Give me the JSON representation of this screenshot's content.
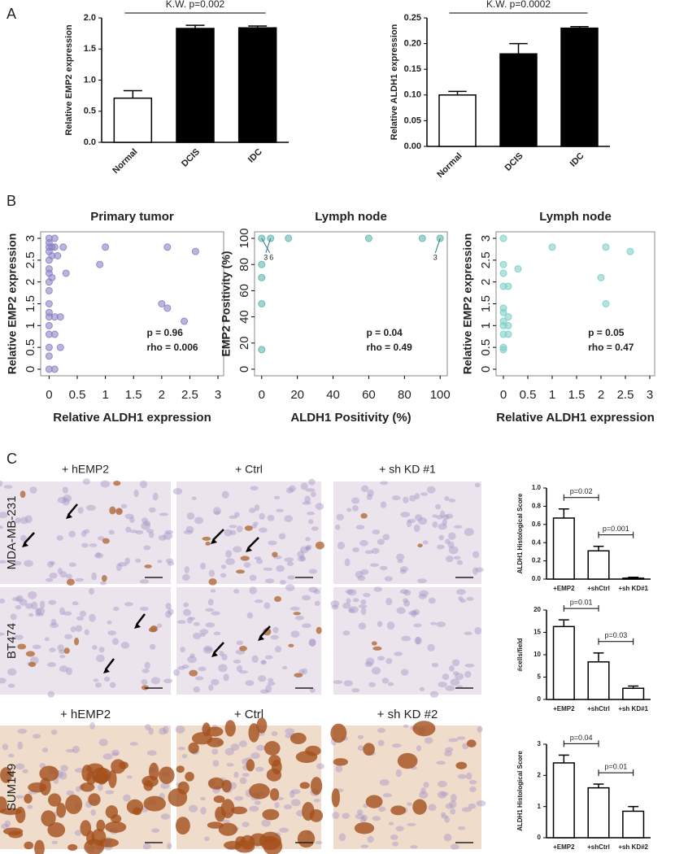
{
  "panel_labels": [
    "A",
    "B",
    "C"
  ],
  "micrographs": {
    "column_headers": [
      "+ hEMP2",
      "+ Ctrl",
      "+ sh KD #1"
    ],
    "row_labels": [
      "MDA-MB-231",
      "BT474",
      "SUM149"
    ],
    "row3_headers": [
      "+ hEMP2",
      "+ Ctrl",
      "+ sh KD #2"
    ]
  },
  "chart_data": [
    {
      "type": "bar",
      "ylabel": "Relative EMP2 expression",
      "annotation": "K.W.  p=0.002",
      "categories": [
        "Normal",
        "DCIS",
        "IDC"
      ],
      "values": [
        0.71,
        1.83,
        1.84
      ],
      "errors": [
        0.12,
        0.05,
        0.03
      ],
      "colors": [
        "#ffffff",
        "#000000",
        "#000000"
      ],
      "ylim": [
        0,
        2
      ],
      "yticks": [
        {
          "value": 0,
          "label": "0.0"
        },
        0.5,
        {
          "value": 1,
          "label": "1.0"
        },
        1.5,
        {
          "value": 2,
          "label": "2.0"
        }
      ]
    },
    {
      "type": "bar",
      "ylabel": "Relative ALDH1 expression",
      "annotation": "K.W.  p=0.0002",
      "categories": [
        "Normal",
        "DCIS",
        "IDC"
      ],
      "values": [
        0.1,
        0.18,
        0.23
      ],
      "errors": [
        0.007,
        0.02,
        0.003
      ],
      "colors": [
        "#ffffff",
        "#000000",
        "#000000"
      ],
      "ylim": [
        0,
        0.25
      ],
      "yticks": [
        {
          "value": 0,
          "label": "0.00"
        },
        {
          "value": 0.05,
          "label": "0.05"
        },
        {
          "value": 0.1,
          "label": "0.10"
        },
        {
          "value": 0.15,
          "label": "0.15"
        },
        {
          "value": 0.2,
          "label": "0.20"
        },
        {
          "value": 0.25,
          "label": "0.25"
        }
      ]
    },
    {
      "type": "scatter",
      "title": "Primary tumor",
      "xlabel": "Relative ALDH1 expression",
      "ylabel": "Relative EMP2 expression",
      "color": "#8a84c4",
      "x": [
        0,
        0,
        0,
        0,
        0,
        0,
        0,
        0,
        0,
        0,
        0,
        0,
        0,
        0,
        0,
        0,
        0,
        0.05,
        0.05,
        0.05,
        0.1,
        0.1,
        0.1,
        0.1,
        0.1,
        0.15,
        0.2,
        0.2,
        0.25,
        0.3,
        0.9,
        1,
        2.1,
        2,
        2.1,
        2.4,
        2.6
      ],
      "y": [
        3,
        2.9,
        2.8,
        2.7,
        2.5,
        2.3,
        2.2,
        2,
        1.8,
        1.5,
        1.3,
        1.2,
        1,
        0.8,
        0.5,
        0.3,
        0,
        2.8,
        2.6,
        2.1,
        3,
        2.8,
        1.2,
        0.8,
        0,
        2.6,
        1.2,
        0.5,
        2.8,
        2.2,
        2.4,
        2.8,
        2.8,
        1.5,
        1.4,
        1.1,
        2.7
      ],
      "xlim": [
        -0.15,
        3.1
      ],
      "ylim": [
        -0.15,
        3.15
      ],
      "xticks": [
        0,
        0.5,
        1,
        1.5,
        2,
        2.5,
        3
      ],
      "yticks": [
        0,
        0.5,
        1,
        1.5,
        2,
        2.5,
        3
      ],
      "stats": [
        "p = 0.96",
        "rho = 0.006"
      ]
    },
    {
      "type": "scatter",
      "title": "Lymph node",
      "xlabel": "ALDH1 Positivity (%)",
      "ylabel": "EMP2 Positivity (%)",
      "color": "#5fb8b0",
      "x": [
        0,
        0,
        0,
        0,
        0,
        5,
        15,
        60,
        90,
        100
      ],
      "y": [
        100,
        80,
        70,
        50,
        15,
        100,
        100,
        100,
        100,
        100
      ],
      "point_labels": [
        "6",
        null,
        null,
        null,
        null,
        "3",
        null,
        null,
        null,
        "3"
      ],
      "xlim": [
        -4,
        104
      ],
      "ylim": [
        -5,
        105
      ],
      "xticks": [
        0,
        20,
        40,
        60,
        80,
        100
      ],
      "yticks": [
        0,
        20,
        40,
        60,
        80,
        100
      ],
      "stats": [
        "p = 0.04",
        "rho = 0.49"
      ]
    },
    {
      "type": "scatter",
      "title": "Lymph node",
      "xlabel": "Relative ALDH1 expression",
      "ylabel": "Relative EMP2 expression",
      "color": "#7fd0c8",
      "x": [
        0,
        0,
        0,
        0,
        0,
        0,
        0,
        0,
        0,
        0,
        0,
        0.1,
        0.1,
        0.1,
        0.1,
        0.3,
        1,
        2,
        2.1,
        2.1,
        2.6
      ],
      "y": [
        3,
        2.4,
        2.2,
        1.9,
        1.4,
        1.3,
        1.1,
        1,
        0.8,
        0.5,
        0.45,
        1.2,
        0.8,
        1,
        1.9,
        2.3,
        2.8,
        2.1,
        2.8,
        1.5,
        2.7
      ],
      "xlim": [
        -0.15,
        3.1
      ],
      "ylim": [
        -0.15,
        3.15
      ],
      "xticks": [
        0,
        0.5,
        1,
        1.5,
        2,
        2.5,
        3
      ],
      "yticks": [
        0,
        0.5,
        1,
        1.5,
        2,
        2.5,
        3
      ],
      "stats": [
        "p = 0.05",
        "rho = 0.47"
      ]
    },
    {
      "type": "bar",
      "ylabel": "ALDH1 Histological Score",
      "categories": [
        "+EMP2",
        "+shCtrl",
        "+sh KD#1"
      ],
      "values": [
        0.67,
        0.31,
        0.01
      ],
      "errors": [
        0.1,
        0.05,
        0.01
      ],
      "color": "#ffffff",
      "ylim": [
        0,
        1
      ],
      "yticks": [
        {
          "value": 0,
          "label": "0.0"
        },
        0.2,
        0.4,
        0.6,
        0.8,
        {
          "value": 1,
          "label": "1.0"
        }
      ],
      "comparisons": [
        {
          "between": [
            "+EMP2",
            "+shCtrl"
          ],
          "label": "p=0.02"
        },
        {
          "between": [
            "+shCtrl",
            "+sh KD#1"
          ],
          "label": "p=0.001"
        }
      ]
    },
    {
      "type": "bar",
      "ylabel": "#cells/field",
      "categories": [
        "+EMP2",
        "+shCtrl",
        "+sh KD#1"
      ],
      "values": [
        16.3,
        8.4,
        2.5
      ],
      "errors": [
        1.5,
        2,
        0.5
      ],
      "color": "#ffffff",
      "ylim": [
        0,
        20
      ],
      "yticks": [
        0,
        5,
        10,
        15,
        20
      ],
      "comparisons": [
        {
          "between": [
            "+EMP2",
            "+shCtrl"
          ],
          "label": "p=0.01"
        },
        {
          "between": [
            "+shCtrl",
            "+sh KD#1"
          ],
          "label": "p=0.03"
        }
      ]
    },
    {
      "type": "bar",
      "ylabel": "ALDH1 Histological Score",
      "categories": [
        "+EMP2",
        "+shCtrl",
        "+sh KD#2"
      ],
      "values": [
        2.4,
        1.6,
        0.85
      ],
      "errors": [
        0.25,
        0.12,
        0.15
      ],
      "color": "#ffffff",
      "ylim": [
        0,
        3
      ],
      "yticks": [
        0,
        1,
        2,
        3
      ],
      "comparisons": [
        {
          "between": [
            "+EMP2",
            "+shCtrl"
          ],
          "label": "p=0.04"
        },
        {
          "between": [
            "+shCtrl",
            "+sh KD#2"
          ],
          "label": "p=0.01"
        }
      ]
    }
  ]
}
